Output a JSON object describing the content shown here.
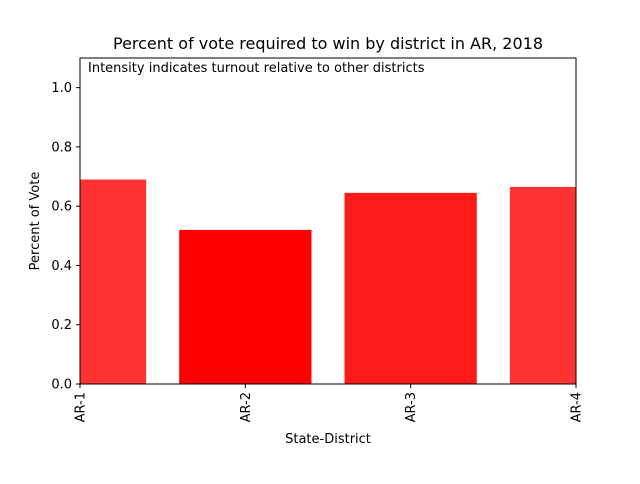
{
  "chart_data": {
    "type": "bar",
    "title": "Percent of vote required to win by district in AR, 2018",
    "annotation": "Intensity indicates turnout relative to other districts",
    "xlabel": "State-District",
    "ylabel": "Percent of Vote",
    "categories": [
      "AR-1",
      "AR-2",
      "AR-3",
      "AR-4"
    ],
    "values": [
      0.69,
      0.52,
      0.645,
      0.665
    ],
    "bar_colors": [
      "#ff3333",
      "#ff0000",
      "#ff1a1a",
      "#ff3333"
    ],
    "ylim": [
      0.0,
      1.1
    ],
    "yticks": [
      "0.0",
      "0.2",
      "0.4",
      "0.6",
      "0.8",
      "1.0"
    ],
    "ytick_values": [
      0.0,
      0.2,
      0.4,
      0.6,
      0.8,
      1.0
    ],
    "grid": false,
    "legend": false
  }
}
